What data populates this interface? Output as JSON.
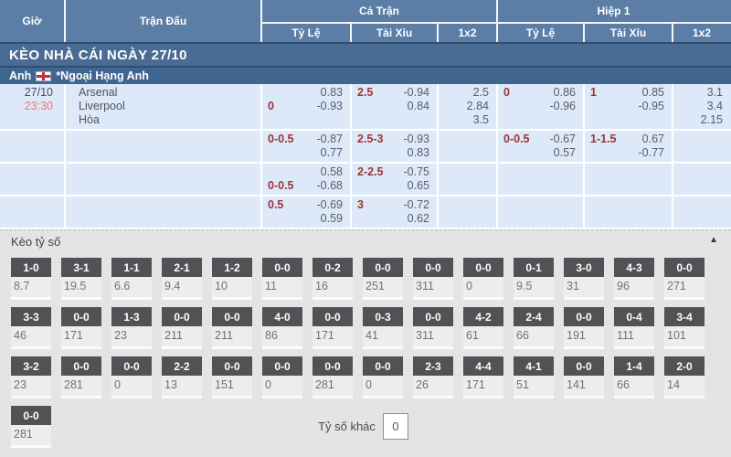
{
  "colors": {
    "header_blue": "#5b7da6",
    "section_bar_blue": "#4a6c94",
    "league_bar_blue": "#3f6690",
    "row_bg": "#dde9f8",
    "handicap_red": "#9c3636",
    "time_red": "#f1726e",
    "score_box_gray": "#525256",
    "score_section_bg": "#e4e4e4"
  },
  "odds_table": {
    "header": {
      "gio": "Giờ",
      "tran_dau": "Trận Đấu",
      "ca_tran": "Cả Trận",
      "hiep_1": "Hiệp 1",
      "ty_le": "Tỷ Lệ",
      "tai_xiu": "Tài Xỉu",
      "one_x_two": "1x2"
    },
    "section_bar_title": "KÈO NHÀ CÁI NGÀY 27/10",
    "league_bar": {
      "country": "Anh",
      "flag_icon": "england-flag",
      "league": "*Ngoại Hạng Anh"
    },
    "match": {
      "date": "27/10",
      "time": "23:30",
      "teams": [
        "Arsenal",
        "Liverpool",
        "Hòa"
      ]
    },
    "rows": [
      {
        "ft_tyle": {
          "lines": [
            [
              "",
              "0.83"
            ],
            [
              "0",
              "-0.93"
            ]
          ]
        },
        "ft_taixiu": {
          "lines": [
            [
              "2.5",
              "-0.94"
            ],
            [
              "",
              "0.84"
            ]
          ]
        },
        "ft_1x2": {
          "lines": [
            [
              "",
              "2.5"
            ],
            [
              "",
              "2.84"
            ],
            [
              "",
              "3.5"
            ]
          ]
        },
        "h1_tyle": {
          "lines": [
            [
              "0",
              "0.86"
            ],
            [
              "",
              "-0.96"
            ]
          ]
        },
        "h1_taixiu": {
          "lines": [
            [
              "1",
              "0.85"
            ],
            [
              "",
              "-0.95"
            ]
          ]
        },
        "h1_1x2": {
          "lines": [
            [
              "",
              "3.1"
            ],
            [
              "",
              "3.4"
            ],
            [
              "",
              "2.15"
            ]
          ]
        }
      },
      {
        "ft_tyle": {
          "lines": [
            [
              "0-0.5",
              "-0.87"
            ],
            [
              "",
              "0.77"
            ]
          ]
        },
        "ft_taixiu": {
          "lines": [
            [
              "2.5-3",
              "-0.93"
            ],
            [
              "",
              "0.83"
            ]
          ]
        },
        "ft_1x2": {
          "lines": []
        },
        "h1_tyle": {
          "lines": [
            [
              "0-0.5",
              "-0.67"
            ],
            [
              "",
              "0.57"
            ]
          ]
        },
        "h1_taixiu": {
          "lines": [
            [
              "1-1.5",
              "0.67"
            ],
            [
              "",
              "-0.77"
            ]
          ]
        },
        "h1_1x2": {
          "lines": []
        }
      },
      {
        "ft_tyle": {
          "lines": [
            [
              "",
              "0.58"
            ],
            [
              "0-0.5",
              "-0.68"
            ]
          ]
        },
        "ft_taixiu": {
          "lines": [
            [
              "2-2.5",
              "-0.75"
            ],
            [
              "",
              "0.65"
            ]
          ]
        },
        "ft_1x2": {
          "lines": []
        },
        "h1_tyle": {
          "lines": []
        },
        "h1_taixiu": {
          "lines": []
        },
        "h1_1x2": {
          "lines": []
        }
      },
      {
        "ft_tyle": {
          "lines": [
            [
              "0.5",
              "-0.69"
            ],
            [
              "",
              "0.59"
            ]
          ]
        },
        "ft_taixiu": {
          "lines": [
            [
              "3",
              "-0.72"
            ],
            [
              "",
              "0.62"
            ]
          ]
        },
        "ft_1x2": {
          "lines": []
        },
        "h1_tyle": {
          "lines": []
        },
        "h1_taixiu": {
          "lines": []
        },
        "h1_1x2": {
          "lines": []
        }
      }
    ]
  },
  "score_section": {
    "title": "Kèo tỷ số",
    "collapse_icon": "▲",
    "rows": [
      [
        {
          "score": "1-0",
          "odds": "8.7"
        },
        {
          "score": "3-1",
          "odds": "19.5"
        },
        {
          "score": "1-1",
          "odds": "6.6"
        },
        {
          "score": "2-1",
          "odds": "9.4"
        },
        {
          "score": "1-2",
          "odds": "10"
        },
        {
          "score": "0-0",
          "odds": "11"
        },
        {
          "score": "0-2",
          "odds": "16"
        },
        {
          "score": "0-0",
          "odds": "251"
        },
        {
          "score": "0-0",
          "odds": "311"
        },
        {
          "score": "0-0",
          "odds": "0"
        },
        {
          "score": "0-1",
          "odds": "9.5"
        },
        {
          "score": "3-0",
          "odds": "31"
        },
        {
          "score": "4-3",
          "odds": "96"
        },
        {
          "score": "0-0",
          "odds": "271"
        }
      ],
      [
        {
          "score": "3-3",
          "odds": "46"
        },
        {
          "score": "0-0",
          "odds": "171"
        },
        {
          "score": "1-3",
          "odds": "23"
        },
        {
          "score": "0-0",
          "odds": "211"
        },
        {
          "score": "0-0",
          "odds": "211"
        },
        {
          "score": "4-0",
          "odds": "86"
        },
        {
          "score": "0-0",
          "odds": "171"
        },
        {
          "score": "0-3",
          "odds": "41"
        },
        {
          "score": "0-0",
          "odds": "311"
        },
        {
          "score": "4-2",
          "odds": "61"
        },
        {
          "score": "2-4",
          "odds": "66"
        },
        {
          "score": "0-0",
          "odds": "191"
        },
        {
          "score": "0-4",
          "odds": "111"
        },
        {
          "score": "3-4",
          "odds": "101"
        }
      ],
      [
        {
          "score": "3-2",
          "odds": "23"
        },
        {
          "score": "0-0",
          "odds": "281"
        },
        {
          "score": "0-0",
          "odds": "0"
        },
        {
          "score": "2-2",
          "odds": "13"
        },
        {
          "score": "0-0",
          "odds": "151"
        },
        {
          "score": "0-0",
          "odds": "0"
        },
        {
          "score": "0-0",
          "odds": "281"
        },
        {
          "score": "0-0",
          "odds": "0"
        },
        {
          "score": "2-3",
          "odds": "26"
        },
        {
          "score": "4-4",
          "odds": "171"
        },
        {
          "score": "4-1",
          "odds": "51"
        },
        {
          "score": "0-0",
          "odds": "141"
        },
        {
          "score": "1-4",
          "odds": "66"
        },
        {
          "score": "2-0",
          "odds": "14"
        }
      ],
      [
        {
          "score": "0-0",
          "odds": "281"
        }
      ]
    ],
    "other": {
      "label": "Tỷ số khác",
      "value": "0"
    }
  }
}
